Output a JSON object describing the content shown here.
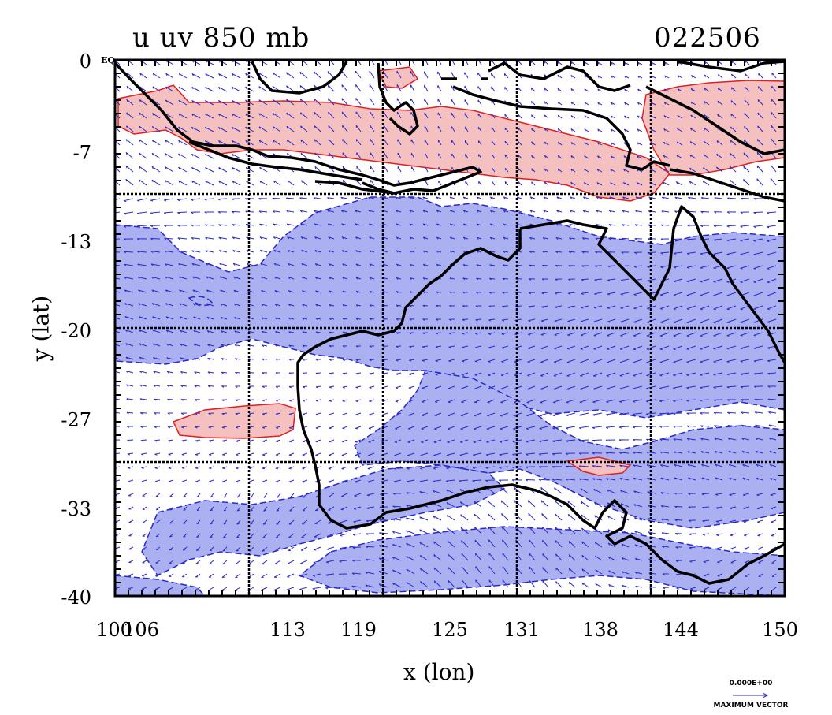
{
  "header": {
    "title_left": "u uv 850 mb",
    "title_right": "022506"
  },
  "axes": {
    "xlabel": "x (lon)",
    "ylabel": "y (lat)",
    "xlim": [
      100,
      150
    ],
    "ylim": [
      -40,
      0
    ],
    "x_ticks": [
      "100",
      "106",
      "113",
      "119",
      "125",
      "131",
      "138",
      "144",
      "150"
    ],
    "y_ticks": [
      "0",
      "-7",
      "-13",
      "-20",
      "-27",
      "-33",
      "-40"
    ],
    "equator_label": "EQ",
    "grid_lon": [
      110,
      120,
      130,
      140
    ],
    "grid_lat": [
      -10,
      -20,
      -30
    ]
  },
  "vector_key": {
    "value": "0.000E+00",
    "label": "MAXIMUM VECTOR"
  },
  "colors": {
    "positive_fill": "#f5c0c0",
    "positive_line": "#e02020",
    "negative_fill": "#aab0f0",
    "negative_line": "#2a2acc",
    "vectors": "#2a2acc",
    "coast": "#000000"
  }
}
